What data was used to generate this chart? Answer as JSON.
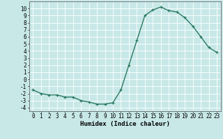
{
  "x": [
    0,
    1,
    2,
    3,
    4,
    5,
    6,
    7,
    8,
    9,
    10,
    11,
    12,
    13,
    14,
    15,
    16,
    17,
    18,
    19,
    20,
    21,
    22,
    23
  ],
  "y": [
    -1.5,
    -2.0,
    -2.2,
    -2.2,
    -2.5,
    -2.5,
    -3.0,
    -3.2,
    -3.5,
    -3.5,
    -3.3,
    -1.5,
    2.0,
    5.5,
    9.0,
    9.8,
    10.2,
    9.7,
    9.5,
    8.7,
    7.5,
    6.0,
    4.5,
    3.8
  ],
  "line_color": "#2a7a62",
  "marker": "+",
  "marker_size": 3,
  "background_color": "#c8e8e8",
  "grid_color": "#ffffff",
  "xlabel": "Humidex (Indice chaleur)",
  "xlim": [
    -0.5,
    23.5
  ],
  "ylim": [
    -4.5,
    11
  ],
  "yticks": [
    -4,
    -3,
    -2,
    -1,
    0,
    1,
    2,
    3,
    4,
    5,
    6,
    7,
    8,
    9,
    10
  ],
  "xticks": [
    0,
    1,
    2,
    3,
    4,
    5,
    6,
    7,
    8,
    9,
    10,
    11,
    12,
    13,
    14,
    15,
    16,
    17,
    18,
    19,
    20,
    21,
    22,
    23
  ],
  "tick_fontsize": 5.5,
  "xlabel_fontsize": 6.5,
  "linewidth": 1.0,
  "marker_edge_width": 0.9
}
